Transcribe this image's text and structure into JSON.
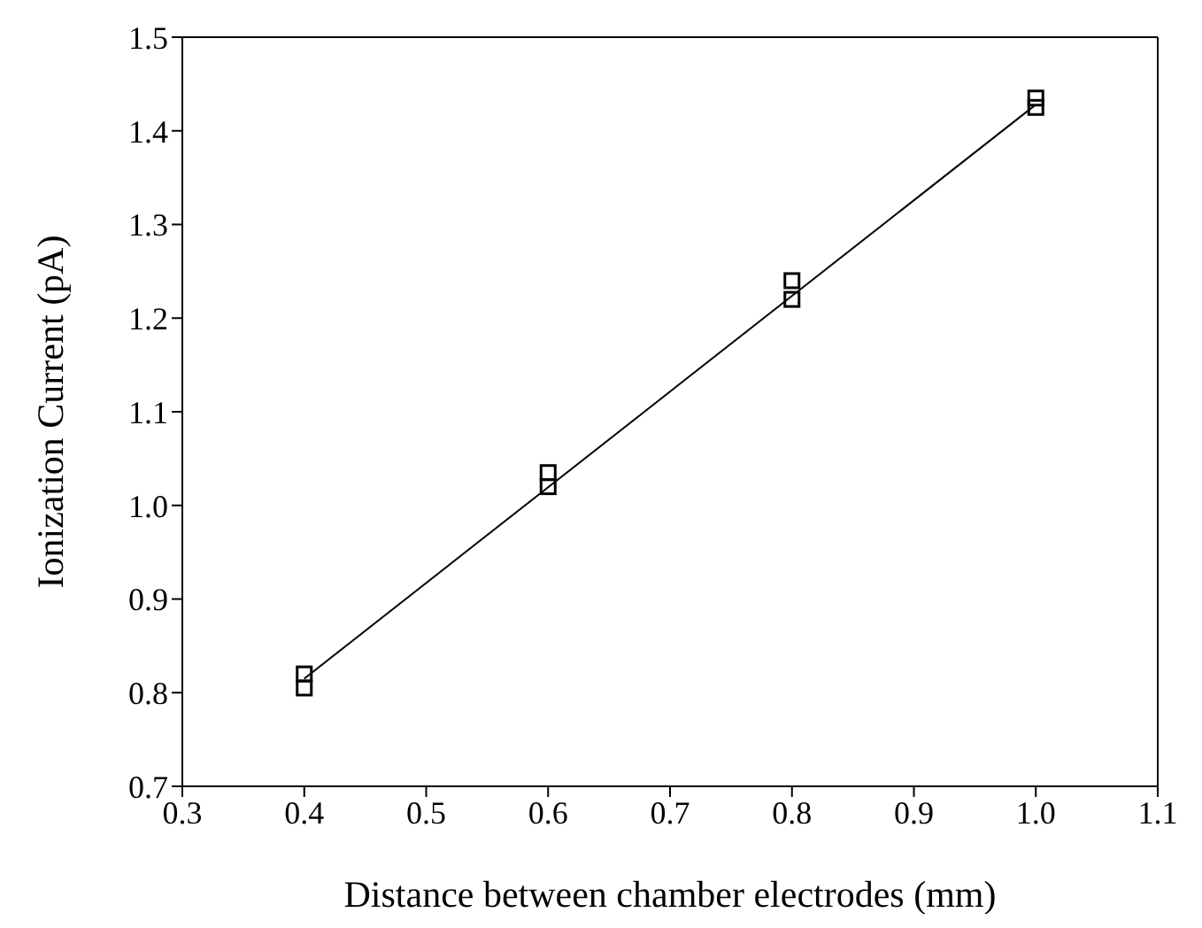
{
  "chart_data": {
    "type": "scatter",
    "xlabel": "Distance between chamber electrodes (mm)",
    "ylabel": "Ionization Current (pA)",
    "xlim": [
      0.3,
      1.1
    ],
    "xticks": [
      0.3,
      0.4,
      0.5,
      0.6,
      0.7,
      0.8,
      0.9,
      {
        "value": 1,
        "label": "1.0"
      },
      1.1
    ],
    "ylim": [
      0.7,
      1.5
    ],
    "yticks": [
      0.7,
      0.8,
      0.9,
      {
        "value": 1,
        "label": "1.0"
      },
      1.1,
      1.2,
      1.3,
      1.4,
      1.5
    ],
    "series": [
      {
        "color": "#000000",
        "marker": "square",
        "x": [
          0.4,
          0.4,
          0.6,
          0.6,
          0.8,
          0.8,
          1,
          1
        ],
        "values": [
          0.805,
          0.82,
          1.02,
          1.035,
          1.22,
          1.24,
          1.425,
          1.435
        ]
      },
      {
        "type": "line",
        "color": "#000000",
        "marker": "none",
        "x": [
          0.4,
          1
        ],
        "values": [
          0.815,
          1.428
        ]
      }
    ]
  }
}
